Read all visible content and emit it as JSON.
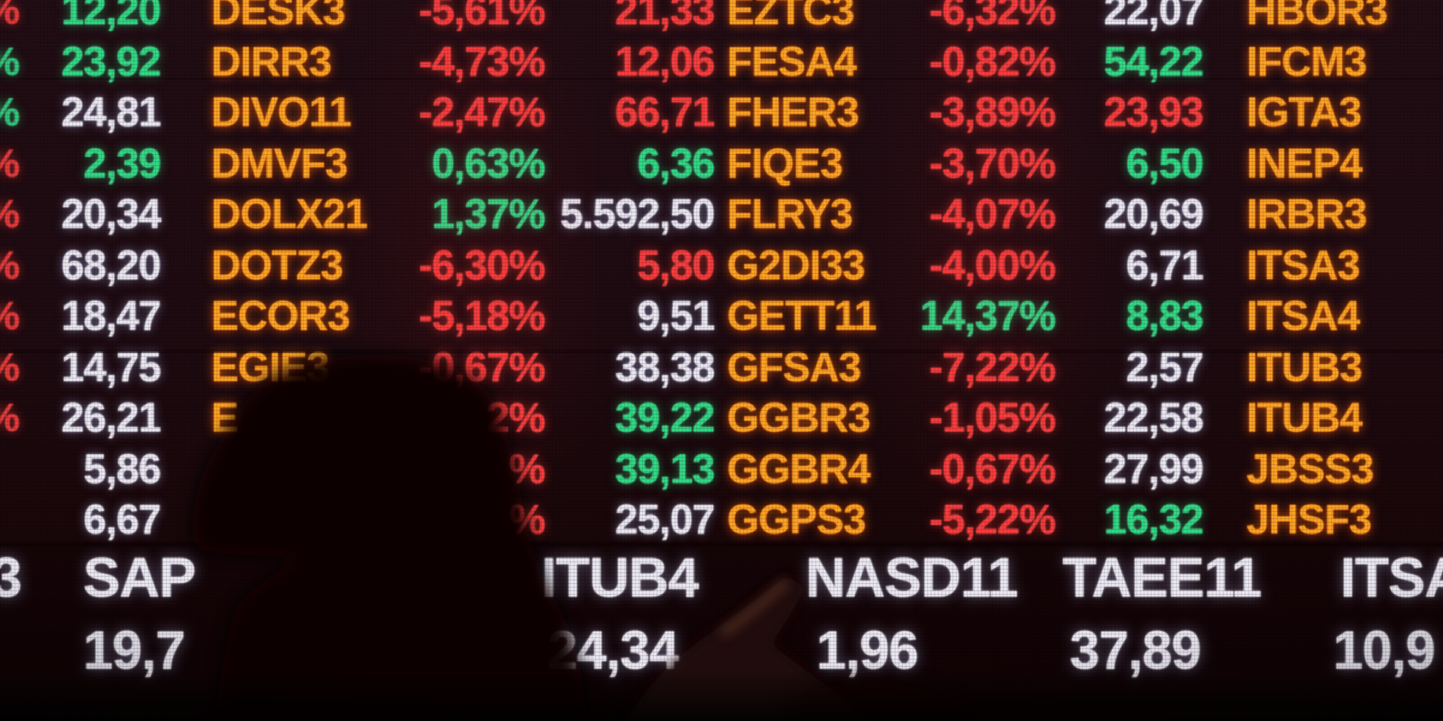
{
  "board": {
    "colors": {
      "up_green": "#2ee28a",
      "down_red": "#fd4040",
      "neutral_white": "#eef1fa",
      "ticker_orange": "#ffaa26",
      "background": "#190b10"
    },
    "edge_column": {
      "symbol": "%",
      "row_colors": [
        "red",
        "green",
        "green",
        "red",
        "red",
        "red",
        "red",
        "red",
        "red",
        "",
        ""
      ]
    },
    "table": {
      "rows": [
        {
          "cells": [
            {
              "text": "12,20",
              "color": "green"
            },
            {
              "text": "DESK3",
              "color": "ticker"
            },
            {
              "text": "-5,61%",
              "color": "red"
            },
            {
              "text": "21,33",
              "color": "red"
            },
            {
              "text": "EZTC3",
              "color": "ticker"
            },
            {
              "text": "-6,32%",
              "color": "red"
            },
            {
              "text": "22,07",
              "color": "white"
            },
            {
              "text": "HBOR3",
              "color": "ticker"
            }
          ]
        },
        {
          "cells": [
            {
              "text": "23,92",
              "color": "green"
            },
            {
              "text": "DIRR3",
              "color": "ticker"
            },
            {
              "text": "-4,73%",
              "color": "red"
            },
            {
              "text": "12,06",
              "color": "red"
            },
            {
              "text": "FESA4",
              "color": "ticker"
            },
            {
              "text": "-0,82%",
              "color": "red"
            },
            {
              "text": "54,22",
              "color": "green"
            },
            {
              "text": "IFCM3",
              "color": "ticker"
            }
          ]
        },
        {
          "cells": [
            {
              "text": "24,81",
              "color": "white"
            },
            {
              "text": "DIVO11",
              "color": "ticker"
            },
            {
              "text": "-2,47%",
              "color": "red"
            },
            {
              "text": "66,71",
              "color": "red"
            },
            {
              "text": "FHER3",
              "color": "ticker"
            },
            {
              "text": "-3,89%",
              "color": "red"
            },
            {
              "text": "23,93",
              "color": "red"
            },
            {
              "text": "IGTA3",
              "color": "ticker"
            }
          ]
        },
        {
          "cells": [
            {
              "text": "2,39",
              "color": "green"
            },
            {
              "text": "DMVF3",
              "color": "ticker"
            },
            {
              "text": "0,63%",
              "color": "green"
            },
            {
              "text": "6,36",
              "color": "green"
            },
            {
              "text": "FIQE3",
              "color": "ticker"
            },
            {
              "text": "-3,70%",
              "color": "red"
            },
            {
              "text": "6,50",
              "color": "green"
            },
            {
              "text": "INEP4",
              "color": "ticker"
            }
          ]
        },
        {
          "cells": [
            {
              "text": "20,34",
              "color": "white"
            },
            {
              "text": "DOLX21",
              "color": "ticker"
            },
            {
              "text": "1,37%",
              "color": "green"
            },
            {
              "text": "5.592,50",
              "color": "white"
            },
            {
              "text": "FLRY3",
              "color": "ticker"
            },
            {
              "text": "-4,07%",
              "color": "red"
            },
            {
              "text": "20,69",
              "color": "white"
            },
            {
              "text": "IRBR3",
              "color": "ticker"
            }
          ]
        },
        {
          "cells": [
            {
              "text": "68,20",
              "color": "white"
            },
            {
              "text": "DOTZ3",
              "color": "ticker"
            },
            {
              "text": "-6,30%",
              "color": "red"
            },
            {
              "text": "5,80",
              "color": "red"
            },
            {
              "text": "G2DI33",
              "color": "ticker"
            },
            {
              "text": "-4,00%",
              "color": "red"
            },
            {
              "text": "6,71",
              "color": "white"
            },
            {
              "text": "ITSA3",
              "color": "ticker"
            }
          ]
        },
        {
          "cells": [
            {
              "text": "18,47",
              "color": "white"
            },
            {
              "text": "ECOR3",
              "color": "ticker"
            },
            {
              "text": "-5,18%",
              "color": "red"
            },
            {
              "text": "9,51",
              "color": "white"
            },
            {
              "text": "GETT11",
              "color": "ticker"
            },
            {
              "text": "14,37%",
              "color": "green"
            },
            {
              "text": "8,83",
              "color": "green"
            },
            {
              "text": "ITSA4",
              "color": "ticker"
            }
          ]
        },
        {
          "cells": [
            {
              "text": "14,75",
              "color": "white"
            },
            {
              "text": "EGIE3",
              "color": "ticker"
            },
            {
              "text": "-0,67%",
              "color": "red"
            },
            {
              "text": "38,38",
              "color": "white"
            },
            {
              "text": "GFSA3",
              "color": "ticker"
            },
            {
              "text": "-7,22%",
              "color": "red"
            },
            {
              "text": "2,57",
              "color": "white"
            },
            {
              "text": "ITUB3",
              "color": "ticker"
            }
          ]
        },
        {
          "cells": [
            {
              "text": "26,21",
              "color": "white"
            },
            {
              "text": "E",
              "color": "ticker"
            },
            {
              "text": "2%",
              "color": "red"
            },
            {
              "text": "39,22",
              "color": "green"
            },
            {
              "text": "GGBR3",
              "color": "ticker"
            },
            {
              "text": "-1,05%",
              "color": "red"
            },
            {
              "text": "22,58",
              "color": "white"
            },
            {
              "text": "ITUB4",
              "color": "ticker"
            }
          ]
        },
        {
          "cells": [
            {
              "text": "5,86",
              "color": "white"
            },
            {
              "text": "",
              "color": "ticker"
            },
            {
              "text": "%",
              "color": "red"
            },
            {
              "text": "39,13",
              "color": "green"
            },
            {
              "text": "GGBR4",
              "color": "ticker"
            },
            {
              "text": "-0,67%",
              "color": "red"
            },
            {
              "text": "27,99",
              "color": "white"
            },
            {
              "text": "JBSS3",
              "color": "ticker"
            }
          ]
        },
        {
          "cells": [
            {
              "text": "6,67",
              "color": "white"
            },
            {
              "text": "",
              "color": "ticker"
            },
            {
              "text": "%",
              "color": "red"
            },
            {
              "text": "25,07",
              "color": "white"
            },
            {
              "text": "GGPS3",
              "color": "ticker"
            },
            {
              "text": "-5,22%",
              "color": "red"
            },
            {
              "text": "16,32",
              "color": "green"
            },
            {
              "text": "JHSF3",
              "color": "ticker"
            }
          ]
        }
      ]
    },
    "band": {
      "cells": [
        {
          "ticker": "3",
          "value": ""
        },
        {
          "ticker": "SAP",
          "value": "19,7"
        },
        {
          "ticker": "ITUB4",
          "value": "24,34"
        },
        {
          "ticker": "NASD11",
          "value": "1,96"
        },
        {
          "ticker": "TAEE11",
          "value": "37,89"
        },
        {
          "ticker": "ITSA",
          "value": "10,9"
        }
      ]
    }
  }
}
